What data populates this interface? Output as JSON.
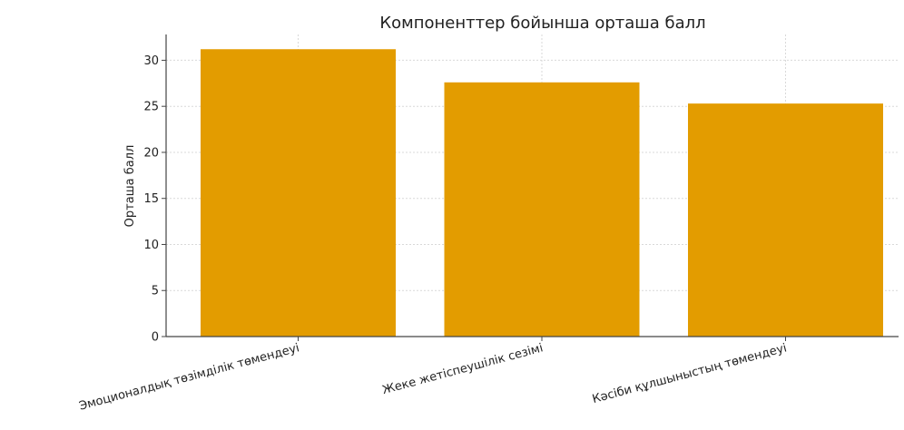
{
  "chart_data": {
    "type": "bar",
    "title": "Компоненттер бойынша орташа балл",
    "xlabel": "",
    "ylabel": "Орташа балл",
    "categories": [
      "Эмоционалдық төзімділік төмендеуі",
      "Жеке жетіспеушілік сезімі",
      "Кәсіби құлшыныстың төмендеуі"
    ],
    "values": [
      31.2,
      27.6,
      25.3
    ],
    "ylim": [
      0,
      32.8
    ],
    "yticks": [
      "0",
      "5",
      "10",
      "15",
      "20",
      "25",
      "30"
    ],
    "grid": true,
    "bar_color": "#E39C00",
    "grid_color": "#d9d9d9",
    "axis_color": "#444444"
  }
}
